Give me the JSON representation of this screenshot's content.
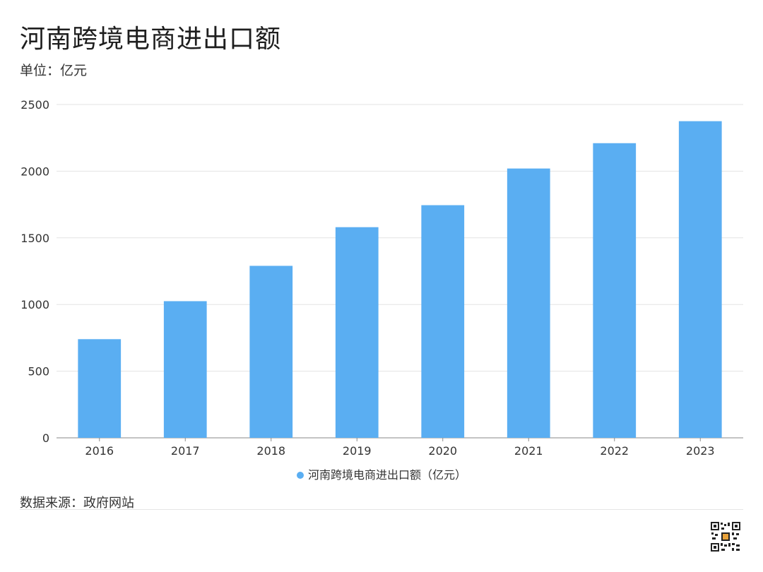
{
  "title": "河南跨境电商进出口额",
  "subtitle": "单位：亿元",
  "source": "数据来源：政府网站",
  "legend": {
    "label": "河南跨境电商进出口额（亿元）",
    "color": "#5aaef2"
  },
  "qr_icon": "qr-code-icon",
  "chart_data": {
    "type": "bar",
    "categories": [
      "2016",
      "2017",
      "2018",
      "2019",
      "2020",
      "2021",
      "2022",
      "2023"
    ],
    "series": [
      {
        "name": "河南跨境电商进出口额（亿元）",
        "values": [
          740,
          1025,
          1290,
          1580,
          1745,
          2020,
          2210,
          2375
        ],
        "color": "#5aaef2"
      }
    ],
    "title": "河南跨境电商进出口额",
    "subtitle": "单位：亿元",
    "xlabel": "",
    "ylabel": "",
    "ylim": [
      0,
      2500
    ],
    "yticks": [
      0,
      500,
      1000,
      1500,
      2000,
      2500
    ],
    "grid": true,
    "legend_position": "bottom"
  }
}
